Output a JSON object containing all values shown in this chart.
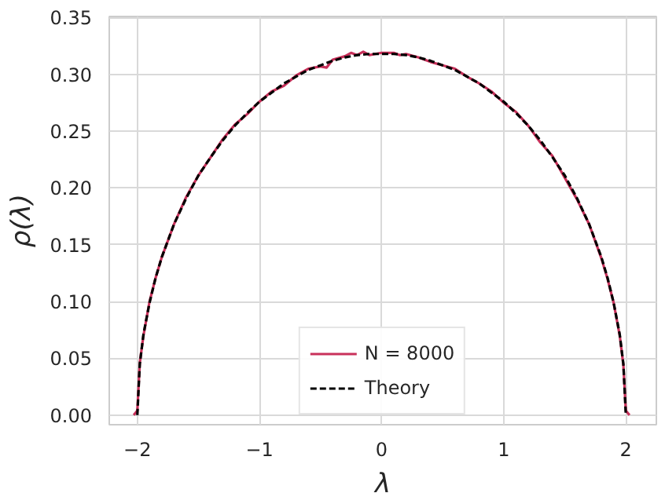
{
  "chart_data": {
    "type": "line",
    "xlabel": "λ",
    "ylabel": "ρ(λ)",
    "xlim": [
      -2.23,
      2.25
    ],
    "ylim": [
      -0.0085,
      0.351
    ],
    "xticks": [
      {
        "value": -2,
        "label": "−2"
      },
      {
        "value": -1,
        "label": "−1"
      },
      0,
      1,
      2
    ],
    "yticks": [
      {
        "value": 0,
        "label": "0.00"
      },
      {
        "value": 0.05,
        "label": "0.05"
      },
      {
        "value": 0.1,
        "label": "0.10"
      },
      {
        "value": 0.15,
        "label": "0.15"
      },
      {
        "value": 0.2,
        "label": "0.20"
      },
      {
        "value": 0.25,
        "label": "0.25"
      },
      {
        "value": 0.3,
        "label": "0.30"
      },
      {
        "value": 0.35,
        "label": "0.35"
      }
    ],
    "grid": true,
    "legend": "bottom",
    "series": [
      {
        "name": "N = 8000",
        "color": "#c8305a",
        "line_style": "solid",
        "x": [
          -2.03,
          -2.0,
          -1.98,
          -1.95,
          -1.9,
          -1.85,
          -1.8,
          -1.7,
          -1.6,
          -1.5,
          -1.4,
          -1.3,
          -1.2,
          -1.1,
          -1.0,
          -0.9,
          -0.8,
          -0.7,
          -0.6,
          -0.5,
          -0.45,
          -0.4,
          -0.3,
          -0.25,
          -0.2,
          -0.15,
          -0.1,
          0.0,
          0.1,
          0.15,
          0.2,
          0.3,
          0.4,
          0.5,
          0.6,
          0.7,
          0.8,
          0.9,
          1.0,
          1.1,
          1.2,
          1.3,
          1.4,
          1.5,
          1.6,
          1.7,
          1.8,
          1.85,
          1.9,
          1.95,
          1.98,
          2.0,
          2.03
        ],
        "values": [
          0.0,
          0.004,
          0.046,
          0.07,
          0.1,
          0.121,
          0.139,
          0.168,
          0.192,
          0.211,
          0.227,
          0.243,
          0.256,
          0.265,
          0.276,
          0.285,
          0.29,
          0.299,
          0.305,
          0.307,
          0.306,
          0.313,
          0.316,
          0.319,
          0.317,
          0.32,
          0.317,
          0.319,
          0.319,
          0.317,
          0.318,
          0.315,
          0.311,
          0.308,
          0.305,
          0.298,
          0.292,
          0.285,
          0.275,
          0.267,
          0.255,
          0.24,
          0.228,
          0.209,
          0.19,
          0.168,
          0.138,
          0.12,
          0.099,
          0.07,
          0.044,
          0.004,
          0.0
        ]
      },
      {
        "name": "Theory",
        "color": "#000000",
        "line_style": "dashed",
        "x": [
          -2.0,
          -1.98,
          -1.95,
          -1.9,
          -1.85,
          -1.8,
          -1.7,
          -1.6,
          -1.5,
          -1.4,
          -1.3,
          -1.2,
          -1.1,
          -1.0,
          -0.9,
          -0.8,
          -0.7,
          -0.6,
          -0.5,
          -0.4,
          -0.3,
          -0.2,
          -0.1,
          0.0,
          0.1,
          0.2,
          0.3,
          0.4,
          0.5,
          0.6,
          0.7,
          0.8,
          0.9,
          1.0,
          1.1,
          1.2,
          1.3,
          1.4,
          1.5,
          1.6,
          1.7,
          1.8,
          1.85,
          1.9,
          1.95,
          1.98,
          2.0
        ],
        "values": [
          0.0,
          0.045,
          0.071,
          0.099,
          0.121,
          0.139,
          0.168,
          0.191,
          0.211,
          0.227,
          0.242,
          0.255,
          0.266,
          0.276,
          0.284,
          0.292,
          0.298,
          0.304,
          0.308,
          0.312,
          0.315,
          0.317,
          0.318,
          0.318,
          0.318,
          0.317,
          0.315,
          0.312,
          0.308,
          0.304,
          0.298,
          0.292,
          0.284,
          0.276,
          0.266,
          0.255,
          0.242,
          0.227,
          0.211,
          0.191,
          0.168,
          0.139,
          0.121,
          0.099,
          0.071,
          0.045,
          0.0
        ]
      }
    ]
  }
}
